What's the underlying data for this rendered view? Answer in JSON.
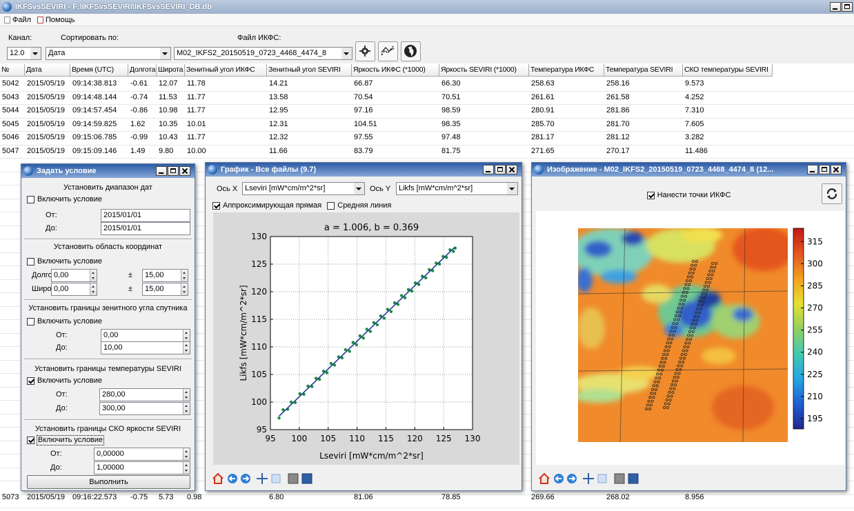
{
  "window": {
    "title": "IKFSvsSEVIRI - F:\\IKFSvsSEVIRI\\IKFSvsSEVIRI_DB.db",
    "menu": [
      "Файл",
      "Помощь"
    ]
  },
  "toolbar": {
    "channel_label": "Канал:",
    "channel": "12.0",
    "sort_label": "Сортировать по:",
    "sort": "Дата",
    "file_label": "Файл ИКФС:",
    "file": "M02_IKFS2_20150519_0723_4468_4474_8"
  },
  "table": {
    "columns": [
      "№",
      "Дата",
      "Время (UTC)",
      "Долгота",
      "Широта",
      "Зенитный угол ИКФС",
      "Зенитный угол SEVIRI",
      "Яркость ИКФС (*1000)",
      "Яркость SEVIRI (*1000)",
      "Температура ИКФС",
      "Температура SEVIRI",
      "СКО температуры SEVIRI"
    ],
    "rows": [
      [
        "5042",
        "2015/05/19",
        "09:14:38.813",
        "-0.61",
        "12.07",
        "11.78",
        "14.21",
        "66.87",
        "66.30",
        "258.63",
        "258.16",
        "9.573"
      ],
      [
        "5043",
        "2015/05/19",
        "09:14:48.144",
        "-0.74",
        "11.53",
        "11.77",
        "13.58",
        "70.54",
        "70.51",
        "261.61",
        "261.58",
        "4.252"
      ],
      [
        "5044",
        "2015/05/19",
        "09:14:57.454",
        "-0.86",
        "10.98",
        "11.77",
        "12.95",
        "97.16",
        "98.59",
        "280.91",
        "281.86",
        "7.310"
      ],
      [
        "5045",
        "2015/05/19",
        "09:14:59.825",
        "1.62",
        "10.35",
        "10.01",
        "12.31",
        "104.51",
        "98.35",
        "285.70",
        "281.70",
        "7.605"
      ],
      [
        "5046",
        "2015/05/19",
        "09:15:06.785",
        "-0.99",
        "10.43",
        "11.77",
        "12.32",
        "97.55",
        "97.48",
        "281.17",
        "281.12",
        "3.282"
      ],
      [
        "5047",
        "2015/05/19",
        "09:15:09.146",
        "1.49",
        "9.80",
        "10.00",
        "11.66",
        "83.79",
        "81.75",
        "271.65",
        "270.17",
        "11.486"
      ],
      [
        "5073",
        "2015/05/19",
        "09:16:22.573",
        "-0.75",
        "5.73",
        "0.98",
        "6.80",
        "81.06",
        "78.85",
        "269.66",
        "268.02",
        "8.956"
      ]
    ]
  },
  "condition_dialog": {
    "title": "Задать условие",
    "button": "Выполнить",
    "sections": [
      {
        "heading": "Установить диапазон дат",
        "enable": "Включить условие",
        "checked": false,
        "fields": [
          {
            "label": "От:",
            "value": "2015/01/01"
          },
          {
            "label": "До:",
            "value": "2015/01/01"
          }
        ]
      },
      {
        "heading": "Установить область координат",
        "enable": "Включить условие",
        "checked": false,
        "fields": [
          {
            "label": "Долгота",
            "value": "0,00",
            "sign": "±",
            "range": "15,00"
          },
          {
            "label": "Широта",
            "value": "0,00",
            "sign": "±",
            "range": "15,00"
          }
        ]
      },
      {
        "heading": "Установить границы зенитного угла спутника",
        "enable": "Включить условие",
        "checked": false,
        "fields": [
          {
            "label": "От:",
            "value": "0,00"
          },
          {
            "label": "До:",
            "value": "10,00"
          }
        ]
      },
      {
        "heading": "Установить границы температуры SEVIRI",
        "enable": "Включить условие",
        "checked": true,
        "fields": [
          {
            "label": "От:",
            "value": "280,00"
          },
          {
            "label": "До:",
            "value": "300,00"
          }
        ]
      },
      {
        "heading": "Установить границы СКО яркости SEVIRI",
        "enable": "Включить условие",
        "checked": true,
        "fields": [
          {
            "label": "От:",
            "value": "0,00000"
          },
          {
            "label": "До:",
            "value": "1,00000"
          }
        ]
      }
    ]
  },
  "plot_dialog": {
    "title": "График - Все файлы (9.7)",
    "x_axis_label": "Ось X",
    "x_axis": "Lseviri [mW*cm/m^2*sr]",
    "y_axis_label": "Ось Y",
    "y_axis": "Likfs [mW*cm/m^2*sr]",
    "options": [
      {
        "label": "Аппроксимирующая прямая",
        "checked": true
      },
      {
        "label": "Средняя линия",
        "checked": false
      }
    ]
  },
  "image_dialog": {
    "title": "Изображение - M02_IKFS2_20150519_0723_4468_4474_8 (12...",
    "option": {
      "label": "Нанести точки ИКФС",
      "checked": true
    }
  },
  "chart_data": [
    {
      "type": "scatter",
      "title": "a = 1.006, b = 0.369",
      "x_label": "Lseviri [mW*cm/m^2*sr]",
      "y_label": "Likfs [mW*cm/m^2*sr]",
      "xlim": [
        95,
        130
      ],
      "ylim": [
        95,
        130
      ],
      "xticks": [
        95,
        100,
        105,
        110,
        115,
        120,
        125,
        130
      ],
      "yticks": [
        95,
        100,
        105,
        110,
        115,
        120,
        125,
        130
      ],
      "grid": true,
      "series": [
        {
          "type": "scatter",
          "color": "#1b8c45",
          "x": [
            96.5,
            97.2,
            98.0,
            98.6,
            99.3,
            100.1,
            100.8,
            101.5,
            102.2,
            102.9,
            103.5,
            104.2,
            104.8,
            105.5,
            106.1,
            106.8,
            107.4,
            108.0,
            108.7,
            109.3,
            109.9,
            110.5,
            111.1,
            111.7,
            112.3,
            112.9,
            113.5,
            114.1,
            114.7,
            115.3,
            115.9,
            116.5,
            117.1,
            117.7,
            118.3,
            118.9,
            119.5,
            120.1,
            120.7,
            121.3,
            121.9,
            122.5,
            123.1,
            123.7,
            124.3,
            124.9,
            125.5,
            126.1,
            126.7,
            127.0
          ],
          "values": [
            97.1,
            98.6,
            98.7,
            100.0,
            99.9,
            101.5,
            101.4,
            102.9,
            102.8,
            104.3,
            104.1,
            105.6,
            105.3,
            107.0,
            106.7,
            108.2,
            108.0,
            109.5,
            109.2,
            110.8,
            110.4,
            112.0,
            111.6,
            113.2,
            112.8,
            114.4,
            114.0,
            115.6,
            115.2,
            116.8,
            116.4,
            118.0,
            117.7,
            119.3,
            118.9,
            120.4,
            120.1,
            121.6,
            121.3,
            122.8,
            122.5,
            124.0,
            123.8,
            125.2,
            125.0,
            126.4,
            126.2,
            127.6,
            127.3,
            127.9
          ]
        },
        {
          "type": "line",
          "color": "#1f3e8c",
          "x": [
            96.5,
            127.0
          ],
          "values": [
            97.45,
            128.13
          ]
        }
      ]
    },
    {
      "type": "colorbar",
      "ylim": [
        188,
        324
      ],
      "yticks": [
        195,
        210,
        225,
        240,
        255,
        270,
        285,
        300,
        315
      ],
      "colors": [
        "#24248c",
        "#1f5fd0",
        "#25a6e0",
        "#44c9b0",
        "#92d060",
        "#e6e030",
        "#f2a020",
        "#e25520",
        "#c01818"
      ]
    }
  ]
}
